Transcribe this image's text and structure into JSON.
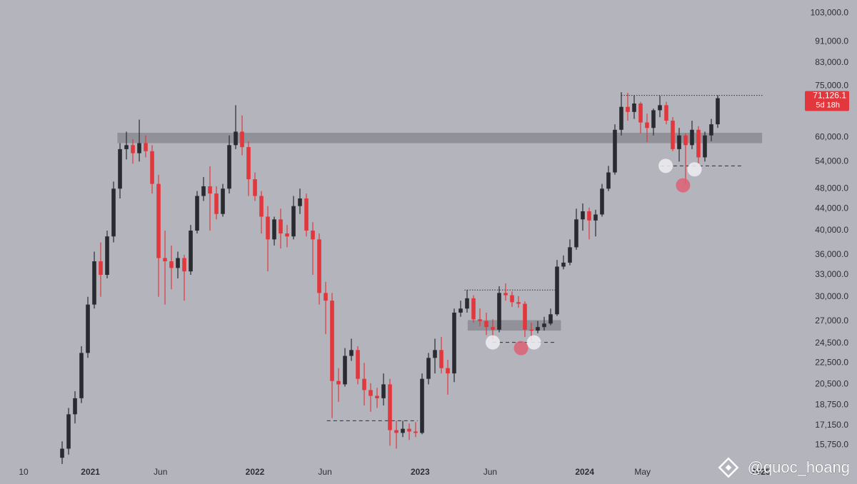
{
  "chart_data": {
    "type": "candlestick",
    "up_color": "#2a2a31",
    "down_color": "#e2373c",
    "log_scale": true,
    "grid": false,
    "xlim": [
      -9.67,
      114.78
    ],
    "ylim": [
      14500,
      109000
    ],
    "xticks": [
      {
        "value": -6,
        "label": "10"
      },
      {
        "value": 4.4,
        "label": "2021"
      },
      {
        "value": 15.3,
        "label": "Jun"
      },
      {
        "value": 30,
        "label": "2022"
      },
      {
        "value": 40.9,
        "label": "Jun"
      },
      {
        "value": 55.7,
        "label": "2023"
      },
      {
        "value": 66.6,
        "label": "Jun"
      },
      {
        "value": 81.3,
        "label": "2024"
      },
      {
        "value": 90.3,
        "label": "May"
      },
      {
        "value": 108.7,
        "label": "2025"
      }
    ],
    "yticks": [
      {
        "value": 103000,
        "label": "103,000.0"
      },
      {
        "value": 91000,
        "label": "91,000.0"
      },
      {
        "value": 83000,
        "label": "83,000.0"
      },
      {
        "value": 75000,
        "label": "75,000.0"
      },
      {
        "value": 60000,
        "label": "60,000.0"
      },
      {
        "value": 54000,
        "label": "54,000.0"
      },
      {
        "value": 48000,
        "label": "48,000.0"
      },
      {
        "value": 44000,
        "label": "44,000.0"
      },
      {
        "value": 40000,
        "label": "40,000.0"
      },
      {
        "value": 36000,
        "label": "36,000.0"
      },
      {
        "value": 33000,
        "label": "33,000.0"
      },
      {
        "value": 30000,
        "label": "30,000.0"
      },
      {
        "value": 27000,
        "label": "27,000.0"
      },
      {
        "value": 24500,
        "label": "24,500.0"
      },
      {
        "value": 22500,
        "label": "22,500.0"
      },
      {
        "value": 20500,
        "label": "20,500.0"
      },
      {
        "value": 18750,
        "label": "18,750.0"
      },
      {
        "value": 17150,
        "label": "17,150.0"
      },
      {
        "value": 15750,
        "label": "15,750.0"
      }
    ],
    "open": [
      14900,
      15500,
      18000,
      19300,
      23500,
      29000,
      35000,
      33000,
      39000,
      48000,
      57000,
      58000,
      56000,
      58500,
      56500,
      49000,
      35500,
      35000,
      34000,
      35500,
      33500,
      40000,
      46500,
      48500,
      47000,
      43000,
      48000,
      58000,
      61500,
      57500,
      50000,
      46500,
      42500,
      38500,
      42000,
      39500,
      39000,
      44500,
      46000,
      40000,
      38500,
      30500,
      29500,
      20800,
      20500,
      23200,
      23800,
      21000,
      20000,
      19500,
      19300,
      20500,
      16800,
      16600,
      16900,
      16700,
      16600,
      21000,
      23000,
      23800,
      22000,
      21500,
      28000,
      28500,
      29800,
      27200,
      27000,
      26300,
      26000,
      30500,
      30200,
      29300,
      29100,
      26000,
      25900,
      26300,
      26700,
      27800,
      34200,
      34800,
      37200,
      42000,
      43500,
      41800,
      42900,
      48000,
      51500,
      62000,
      68500,
      67000,
      69500,
      64000,
      62500,
      67500,
      69000,
      64500,
      57000,
      60500,
      58000,
      62000,
      55000,
      60500,
      63500
    ],
    "high": [
      16000,
      18500,
      19900,
      24200,
      30000,
      36500,
      38000,
      40000,
      49500,
      58500,
      61500,
      59500,
      64800,
      60500,
      58000,
      51000,
      40000,
      37500,
      36500,
      36000,
      41000,
      47500,
      50500,
      52900,
      48500,
      49000,
      60500,
      69000,
      66000,
      59000,
      51500,
      47500,
      44500,
      42500,
      44000,
      41000,
      46500,
      48000,
      47000,
      41500,
      39500,
      32000,
      30500,
      22000,
      24000,
      25000,
      24200,
      22500,
      20600,
      20200,
      21500,
      21000,
      17500,
      17500,
      17300,
      17400,
      21500,
      23500,
      25000,
      25200,
      22800,
      28500,
      29500,
      30900,
      30200,
      28500,
      28000,
      27200,
      31400,
      31800,
      30700,
      30100,
      29400,
      26800,
      27000,
      27500,
      28500,
      35200,
      35900,
      38500,
      44000,
      45000,
      44200,
      43800,
      49000,
      53000,
      63500,
      73000,
      72800,
      72000,
      70000,
      66500,
      68000,
      71900,
      70000,
      65500,
      62500,
      61000,
      64500,
      63000,
      61500,
      65000,
      72000
    ],
    "low": [
      14500,
      15100,
      17300,
      18900,
      23000,
      28500,
      30000,
      32500,
      38000,
      46000,
      54500,
      53500,
      54000,
      55000,
      47000,
      30000,
      29000,
      31000,
      32500,
      29500,
      33000,
      39500,
      45500,
      40000,
      42000,
      42500,
      47000,
      57000,
      55500,
      46500,
      45500,
      39500,
      33500,
      37500,
      37000,
      37200,
      38500,
      43000,
      39000,
      33000,
      29000,
      25500,
      17700,
      19000,
      20300,
      22700,
      20500,
      18700,
      18200,
      18500,
      18700,
      15700,
      15500,
      16300,
      16100,
      16300,
      16500,
      20500,
      21500,
      21500,
      19600,
      20700,
      27500,
      28000,
      26800,
      26400,
      25400,
      24900,
      25700,
      29500,
      28700,
      28600,
      25200,
      24800,
      25600,
      25900,
      26500,
      27600,
      33800,
      34400,
      36800,
      40000,
      38500,
      39000,
      42500,
      47500,
      51000,
      60500,
      64500,
      65000,
      61000,
      58800,
      60500,
      65500,
      63500,
      56500,
      54000,
      49000,
      57000,
      53500,
      54000,
      59000,
      62500
    ],
    "close": [
      15500,
      18000,
      19300,
      23500,
      29000,
      35000,
      33000,
      39000,
      48000,
      57000,
      58000,
      56000,
      58500,
      56500,
      49000,
      35500,
      35000,
      34000,
      35500,
      33500,
      40000,
      46500,
      48500,
      47000,
      43000,
      48000,
      58000,
      61500,
      57500,
      50000,
      46500,
      42500,
      38500,
      42000,
      39500,
      39000,
      44500,
      46000,
      40000,
      38500,
      30500,
      29500,
      20800,
      20500,
      23200,
      23800,
      21000,
      20000,
      19500,
      19300,
      20500,
      16800,
      16600,
      16900,
      16700,
      16600,
      21000,
      23000,
      23800,
      22000,
      21500,
      28000,
      28500,
      29800,
      27200,
      27000,
      26300,
      26000,
      30500,
      30200,
      29300,
      29100,
      26000,
      25900,
      26300,
      26700,
      27800,
      34200,
      34800,
      37200,
      42000,
      43500,
      41800,
      42900,
      48000,
      51500,
      62000,
      68500,
      67000,
      69500,
      64000,
      62500,
      67500,
      69000,
      64500,
      57000,
      60500,
      58000,
      62000,
      55000,
      60500,
      63500,
      71126.1
    ],
    "zones": [
      {
        "x": [
          8.6,
          108.9
        ],
        "y": [
          58500,
          61200
        ]
      },
      {
        "x": [
          63.1,
          77.6
        ],
        "y": [
          25900,
          27100
        ]
      }
    ],
    "levels": [
      {
        "x": [
          87,
          109
        ],
        "y": 72000,
        "style": "dotted"
      },
      {
        "x": [
          93.1,
          105.9
        ],
        "y": 53000,
        "style": "dashed"
      },
      {
        "x": [
          62.6,
          77
        ],
        "y": 30900,
        "style": "dotted"
      },
      {
        "x": [
          67,
          77
        ],
        "y": 24600,
        "style": "dashed"
      },
      {
        "x": [
          41.2,
          55.3
        ],
        "y": 17500,
        "style": "dashed"
      }
    ],
    "markers": [
      {
        "x": 67,
        "y": 24600,
        "color": "rgba(238,238,242,0.85)"
      },
      {
        "x": 73.4,
        "y": 24600,
        "color": "rgba(238,238,242,0.85)"
      },
      {
        "x": 93.9,
        "y": 53000,
        "color": "rgba(238,238,242,0.85)"
      },
      {
        "x": 98.4,
        "y": 52200,
        "color": "rgba(238,238,242,0.85)"
      },
      {
        "x": 71.4,
        "y": 24000,
        "color": "rgba(222,92,112,0.8)"
      },
      {
        "x": 96.6,
        "y": 48700,
        "color": "rgba(222,92,112,0.8)"
      }
    ],
    "last_price": {
      "value": 71126.1,
      "label": "71,126.1",
      "countdown": "5d 18h"
    },
    "watermark": "@quoc_hoang"
  }
}
